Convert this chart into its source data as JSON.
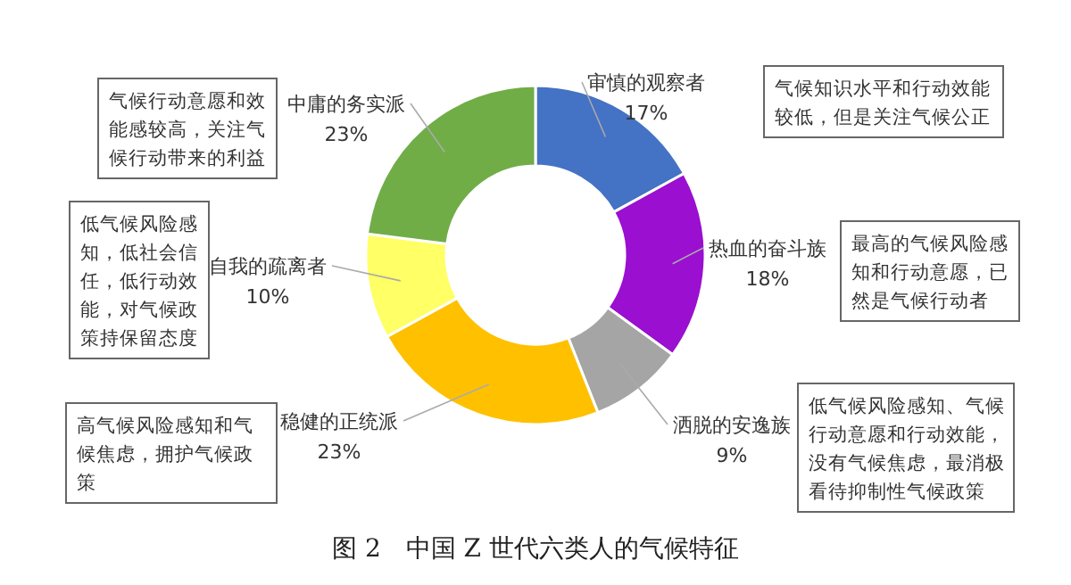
{
  "chart_data": {
    "type": "donut",
    "title": "图 2　中国 Z 世代六类人的气候特征",
    "categories": [
      "审慎的观察者",
      "热血的奋斗族",
      "洒脱的安逸族",
      "稳健的正统派",
      "自我的疏离者",
      "中庸的务实派"
    ],
    "values": [
      17,
      18,
      9,
      23,
      10,
      23
    ],
    "colors": [
      "#4472c4",
      "#9a0fd0",
      "#a5a5a5",
      "#ffc000",
      "#ffff66",
      "#70ad47"
    ],
    "value_labels": [
      "17%",
      "18%",
      "9%",
      "23%",
      "10%",
      "23%"
    ],
    "annotations": [
      "气候知识水平和行动效能较低，但是关注气候公正",
      "最高的气候风险感知和行动意愿，已然是气候行动者",
      "低气候风险感知、气候行动意愿和行动效能，没有气候焦虑，最消极看待抑制性气候政策",
      "高气候风险感知和气候焦虑，拥护气候政策",
      "低气候风险感知，低社会信任，低行动效能，对气候政策持保留态度",
      "气候行动意愿和效能感较高，关注气候行动带来的利益"
    ]
  }
}
